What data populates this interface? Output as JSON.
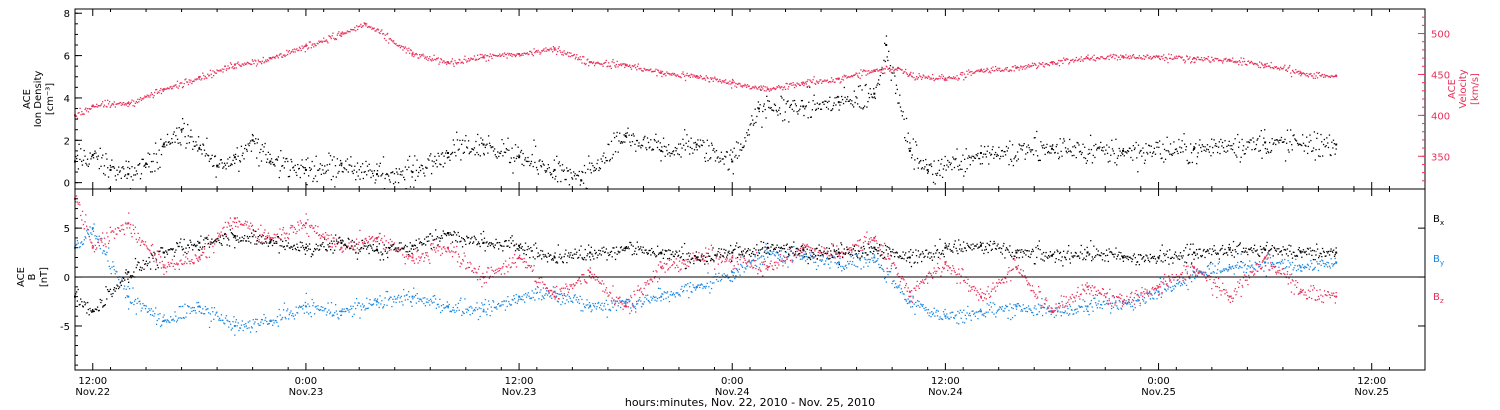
{
  "figure": {
    "xlabel": "hours:minutes, Nov. 22, 2010 - Nov. 25, 2010",
    "x_start": "2010-11-22T11:00",
    "x_end": "2010-11-25T15:00",
    "x_ticks": [
      {
        "time": "2010-11-22T12:00",
        "line1": "12:00",
        "line2": "Nov.22"
      },
      {
        "time": "2010-11-23T00:00",
        "line1": "0:00",
        "line2": "Nov.23"
      },
      {
        "time": "2010-11-23T12:00",
        "line1": "12:00",
        "line2": "Nov.23"
      },
      {
        "time": "2010-11-24T00:00",
        "line1": "0:00",
        "line2": "Nov.24"
      },
      {
        "time": "2010-11-24T12:00",
        "line1": "12:00",
        "line2": "Nov.24"
      },
      {
        "time": "2010-11-25T00:00",
        "line1": "0:00",
        "line2": "Nov.25"
      },
      {
        "time": "2010-11-25T12:00",
        "line1": "12:00",
        "line2": "Nov.25"
      }
    ]
  },
  "chart_data": [
    {
      "type": "scatter",
      "panel": "plasma",
      "left_axis": {
        "label_lines": [
          "ACE",
          "Ion Density"
        ],
        "unit": "[cm⁻³]",
        "ylim": [
          -0.3,
          8.2
        ],
        "ticks": [
          0,
          2,
          4,
          6,
          8
        ],
        "color": "#000000"
      },
      "right_axis": {
        "label_lines": [
          "ACE",
          "Velocity"
        ],
        "unit": "[km/s]",
        "ylim": [
          310,
          530
        ],
        "ticks": [
          350,
          400,
          450,
          500
        ],
        "color": "#e8305a"
      },
      "grid": false,
      "series": [
        {
          "axis": "left",
          "color": "#000000",
          "points": [
            [
              "2010-11-22T11:00",
              1.0
            ],
            [
              "2010-11-22T12:00",
              1.3
            ],
            [
              "2010-11-22T13:00",
              0.6
            ],
            [
              "2010-11-22T14:00",
              0.4
            ],
            [
              "2010-11-22T15:00",
              0.9
            ],
            [
              "2010-11-22T16:00",
              1.8
            ],
            [
              "2010-11-22T17:00",
              2.5
            ],
            [
              "2010-11-22T18:00",
              1.6
            ],
            [
              "2010-11-22T19:00",
              0.8
            ],
            [
              "2010-11-22T20:00",
              1.2
            ],
            [
              "2010-11-22T21:00",
              2.0
            ],
            [
              "2010-11-22T22:00",
              1.0
            ],
            [
              "2010-11-23T00:00",
              0.6
            ],
            [
              "2010-11-23T02:00",
              0.9
            ],
            [
              "2010-11-23T04:00",
              0.4
            ],
            [
              "2010-11-23T06:00",
              0.5
            ],
            [
              "2010-11-23T08:00",
              1.4
            ],
            [
              "2010-11-23T10:00",
              1.8
            ],
            [
              "2010-11-23T12:00",
              1.2
            ],
            [
              "2010-11-23T14:00",
              0.6
            ],
            [
              "2010-11-23T15:30",
              0.1
            ],
            [
              "2010-11-23T18:00",
              2.2
            ],
            [
              "2010-11-23T20:00",
              1.5
            ],
            [
              "2010-11-23T22:00",
              1.8
            ],
            [
              "2010-11-24T00:00",
              1.0
            ],
            [
              "2010-11-24T01:30",
              3.5
            ],
            [
              "2010-11-24T04:00",
              3.6
            ],
            [
              "2010-11-24T06:00",
              3.8
            ],
            [
              "2010-11-24T08:00",
              4.2
            ],
            [
              "2010-11-24T08:40",
              6.5
            ],
            [
              "2010-11-24T10:00",
              1.5
            ],
            [
              "2010-11-24T11:00",
              0.6
            ],
            [
              "2010-11-24T14:00",
              1.4
            ],
            [
              "2010-11-24T18:00",
              1.6
            ],
            [
              "2010-11-24T22:00",
              1.5
            ],
            [
              "2010-11-25T02:00",
              1.6
            ],
            [
              "2010-11-25T06:00",
              1.9
            ],
            [
              "2010-11-25T10:00",
              1.8
            ]
          ]
        },
        {
          "axis": "right",
          "color": "#e8305a",
          "points": [
            [
              "2010-11-22T11:00",
              400
            ],
            [
              "2010-11-22T12:00",
              412
            ],
            [
              "2010-11-22T14:00",
              415
            ],
            [
              "2010-11-22T16:00",
              432
            ],
            [
              "2010-11-22T18:00",
              447
            ],
            [
              "2010-11-22T20:00",
              462
            ],
            [
              "2010-11-22T22:00",
              470
            ],
            [
              "2010-11-23T00:00",
              485
            ],
            [
              "2010-11-23T02:00",
              500
            ],
            [
              "2010-11-23T03:20",
              512
            ],
            [
              "2010-11-23T06:00",
              475
            ],
            [
              "2010-11-23T08:00",
              465
            ],
            [
              "2010-11-23T10:00",
              472
            ],
            [
              "2010-11-23T12:00",
              475
            ],
            [
              "2010-11-23T14:00",
              482
            ],
            [
              "2010-11-23T16:00",
              465
            ],
            [
              "2010-11-23T18:00",
              462
            ],
            [
              "2010-11-23T20:00",
              452
            ],
            [
              "2010-11-23T22:00",
              448
            ],
            [
              "2010-11-24T00:00",
              440
            ],
            [
              "2010-11-24T02:00",
              432
            ],
            [
              "2010-11-24T04:00",
              440
            ],
            [
              "2010-11-24T06:00",
              445
            ],
            [
              "2010-11-24T08:00",
              455
            ],
            [
              "2010-11-24T09:20",
              458
            ],
            [
              "2010-11-24T10:00",
              450
            ],
            [
              "2010-11-24T12:00",
              445
            ],
            [
              "2010-11-24T14:00",
              455
            ],
            [
              "2010-11-24T16:00",
              458
            ],
            [
              "2010-11-24T18:00",
              465
            ],
            [
              "2010-11-24T20:00",
              470
            ],
            [
              "2010-11-24T22:00",
              472
            ],
            [
              "2010-11-25T00:00",
              472
            ],
            [
              "2010-11-25T02:00",
              470
            ],
            [
              "2010-11-25T04:00",
              468
            ],
            [
              "2010-11-25T06:00",
              462
            ],
            [
              "2010-11-25T08:00",
              452
            ],
            [
              "2010-11-25T10:00",
              448
            ]
          ]
        }
      ]
    },
    {
      "type": "scatter",
      "panel": "magnetic",
      "left_axis": {
        "label_lines": [
          "ACE",
          "B"
        ],
        "unit": "[nT]",
        "ylim": [
          -9.5,
          9
        ],
        "ticks": [
          -5,
          0,
          5
        ]
      },
      "zero_line": true,
      "grid": false,
      "legend_position": "right",
      "series": [
        {
          "name": "B",
          "subscript": "x",
          "color": "#000000",
          "points": [
            [
              "2010-11-22T11:00",
              -2.0
            ],
            [
              "2010-11-22T12:00",
              -3.5
            ],
            [
              "2010-11-22T14:00",
              0.5
            ],
            [
              "2010-11-22T16:00",
              2.5
            ],
            [
              "2010-11-22T18:00",
              3.5
            ],
            [
              "2010-11-22T20:00",
              4.2
            ],
            [
              "2010-11-22T22:00",
              3.6
            ],
            [
              "2010-11-23T00:00",
              3.0
            ],
            [
              "2010-11-23T02:00",
              3.5
            ],
            [
              "2010-11-23T04:00",
              2.8
            ],
            [
              "2010-11-23T06:00",
              3.2
            ],
            [
              "2010-11-23T08:00",
              4.5
            ],
            [
              "2010-11-23T10:00",
              3.5
            ],
            [
              "2010-11-23T12:00",
              3.2
            ],
            [
              "2010-11-23T14:00",
              2.0
            ],
            [
              "2010-11-23T16:00",
              2.5
            ],
            [
              "2010-11-23T18:00",
              3.0
            ],
            [
              "2010-11-23T20:00",
              2.5
            ],
            [
              "2010-11-23T22:00",
              2.0
            ],
            [
              "2010-11-24T00:00",
              2.5
            ],
            [
              "2010-11-24T02:00",
              3.0
            ],
            [
              "2010-11-24T04:00",
              2.8
            ],
            [
              "2010-11-24T06:00",
              2.5
            ],
            [
              "2010-11-24T08:00",
              3.0
            ],
            [
              "2010-11-24T10:00",
              2.0
            ],
            [
              "2010-11-24T12:00",
              3.0
            ],
            [
              "2010-11-24T14:00",
              3.2
            ],
            [
              "2010-11-24T16:00",
              2.5
            ],
            [
              "2010-11-24T18:00",
              2.2
            ],
            [
              "2010-11-24T20:00",
              2.5
            ],
            [
              "2010-11-24T22:00",
              2.0
            ],
            [
              "2010-11-25T00:00",
              2.0
            ],
            [
              "2010-11-25T02:00",
              2.5
            ],
            [
              "2010-11-25T04:00",
              2.8
            ],
            [
              "2010-11-25T06:00",
              2.8
            ],
            [
              "2010-11-25T08:00",
              2.6
            ],
            [
              "2010-11-25T10:00",
              2.5
            ]
          ]
        },
        {
          "name": "B",
          "subscript": "y",
          "color": "#1a86e0",
          "points": [
            [
              "2010-11-22T11:00",
              3.0
            ],
            [
              "2010-11-22T12:00",
              5.0
            ],
            [
              "2010-11-22T14:00",
              -2.0
            ],
            [
              "2010-11-22T16:00",
              -4.5
            ],
            [
              "2010-11-22T18:00",
              -3.0
            ],
            [
              "2010-11-22T20:00",
              -5.0
            ],
            [
              "2010-11-22T22:00",
              -4.5
            ],
            [
              "2010-11-23T00:00",
              -3.0
            ],
            [
              "2010-11-23T02:00",
              -3.5
            ],
            [
              "2010-11-23T04:00",
              -2.5
            ],
            [
              "2010-11-23T06:00",
              -2.0
            ],
            [
              "2010-11-23T08:00",
              -3.0
            ],
            [
              "2010-11-23T10:00",
              -3.5
            ],
            [
              "2010-11-23T12:00",
              -2.0
            ],
            [
              "2010-11-23T14:00",
              -1.5
            ],
            [
              "2010-11-23T16:00",
              -3.0
            ],
            [
              "2010-11-23T18:00",
              -2.5
            ],
            [
              "2010-11-23T20:00",
              -2.0
            ],
            [
              "2010-11-23T22:00",
              -1.0
            ],
            [
              "2010-11-24T00:00",
              0.5
            ],
            [
              "2010-11-24T02:00",
              2.5
            ],
            [
              "2010-11-24T04:00",
              2.0
            ],
            [
              "2010-11-24T06:00",
              1.5
            ],
            [
              "2010-11-24T08:00",
              2.0
            ],
            [
              "2010-11-24T10:00",
              -2.5
            ],
            [
              "2010-11-24T12:00",
              -4.0
            ],
            [
              "2010-11-24T14:00",
              -3.5
            ],
            [
              "2010-11-24T16:00",
              -3.0
            ],
            [
              "2010-11-24T18:00",
              -3.5
            ],
            [
              "2010-11-24T20:00",
              -3.0
            ],
            [
              "2010-11-24T22:00",
              -2.5
            ],
            [
              "2010-11-25T00:00",
              -1.5
            ],
            [
              "2010-11-25T02:00",
              0.5
            ],
            [
              "2010-11-25T04:00",
              1.0
            ],
            [
              "2010-11-25T06:00",
              1.5
            ],
            [
              "2010-11-25T08:00",
              1.0
            ],
            [
              "2010-11-25T10:00",
              1.5
            ]
          ]
        },
        {
          "name": "B",
          "subscript": "z",
          "color": "#e8305a",
          "points": [
            [
              "2010-11-22T11:00",
              8.0
            ],
            [
              "2010-11-22T12:00",
              3.0
            ],
            [
              "2010-11-22T14:00",
              5.5
            ],
            [
              "2010-11-22T16:00",
              1.0
            ],
            [
              "2010-11-22T18:00",
              2.0
            ],
            [
              "2010-11-22T20:00",
              6.0
            ],
            [
              "2010-11-22T22:00",
              4.0
            ],
            [
              "2010-11-23T00:00",
              5.5
            ],
            [
              "2010-11-23T02:00",
              3.0
            ],
            [
              "2010-11-23T04:00",
              4.0
            ],
            [
              "2010-11-23T06:00",
              2.0
            ],
            [
              "2010-11-23T08:00",
              3.0
            ],
            [
              "2010-11-23T10:00",
              0.0
            ],
            [
              "2010-11-23T12:00",
              2.0
            ],
            [
              "2010-11-23T14:00",
              -2.0
            ],
            [
              "2010-11-23T16:00",
              0.5
            ],
            [
              "2010-11-23T18:00",
              -3.0
            ],
            [
              "2010-11-23T20:00",
              1.0
            ],
            [
              "2010-11-23T22:00",
              2.0
            ],
            [
              "2010-11-24T00:00",
              2.0
            ],
            [
              "2010-11-24T02:00",
              1.0
            ],
            [
              "2010-11-24T04:00",
              3.0
            ],
            [
              "2010-11-24T06:00",
              2.5
            ],
            [
              "2010-11-24T08:00",
              4.0
            ],
            [
              "2010-11-24T10:00",
              -1.5
            ],
            [
              "2010-11-24T12:00",
              1.5
            ],
            [
              "2010-11-24T14:00",
              -2.0
            ],
            [
              "2010-11-24T16:00",
              1.0
            ],
            [
              "2010-11-24T18:00",
              -3.5
            ],
            [
              "2010-11-24T20:00",
              -1.0
            ],
            [
              "2010-11-24T22:00",
              -2.5
            ],
            [
              "2010-11-25T00:00",
              -1.0
            ],
            [
              "2010-11-25T02:00",
              1.0
            ],
            [
              "2010-11-25T04:00",
              -2.0
            ],
            [
              "2010-11-25T06:00",
              2.0
            ],
            [
              "2010-11-25T08:00",
              -1.5
            ],
            [
              "2010-11-25T10:00",
              -2.0
            ]
          ]
        }
      ]
    }
  ]
}
